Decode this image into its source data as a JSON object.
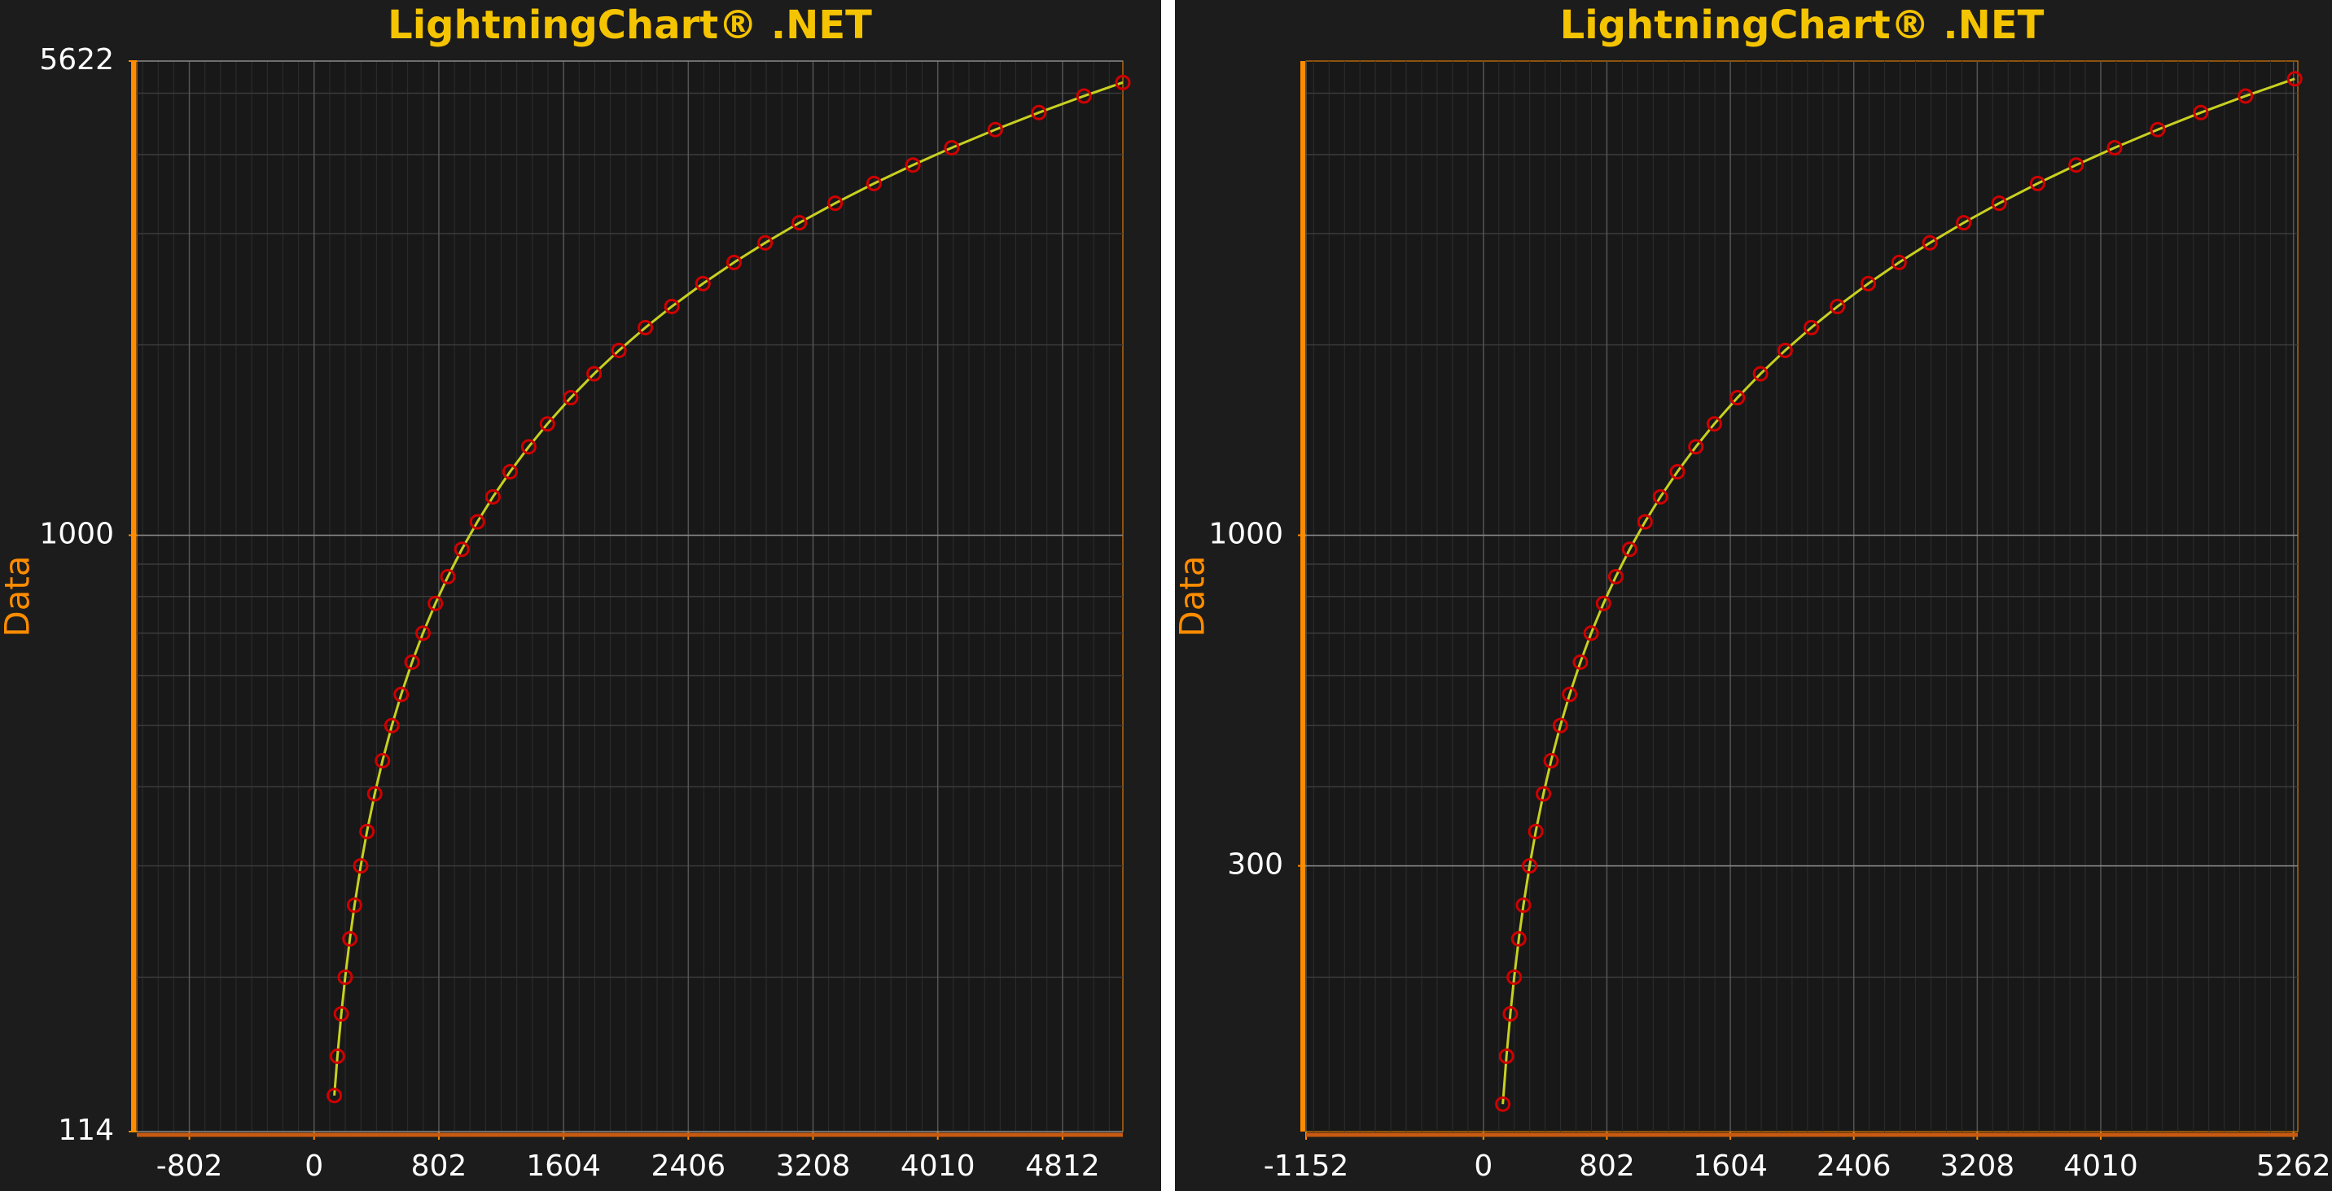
{
  "chart_data": [
    {
      "type": "scatter",
      "title": "LightningChart® .NET",
      "y_label": "Data",
      "log_y": true,
      "grid": true,
      "color": "#d00000",
      "line_color": "#c8d020",
      "axis_color": "#ff8c00",
      "title_color": "#f5c400",
      "x": [
        130,
        150,
        175,
        200,
        230,
        260,
        300,
        340,
        390,
        440,
        500,
        560,
        630,
        700,
        780,
        860,
        950,
        1050,
        1150,
        1260,
        1380,
        1500,
        1650,
        1800,
        1960,
        2130,
        2300,
        2500,
        2700,
        2900,
        3120,
        3350,
        3600,
        3850,
        4100,
        4380,
        4660,
        4950,
        5200
      ],
      "values": [
        130,
        150,
        175,
        200,
        230,
        260,
        300,
        340,
        390,
        440,
        500,
        560,
        630,
        700,
        780,
        860,
        950,
        1050,
        1150,
        1260,
        1380,
        1500,
        1650,
        1800,
        1960,
        2130,
        2300,
        2500,
        2700,
        2900,
        3120,
        3350,
        3600,
        3850,
        4100,
        4380,
        4660,
        4950,
        5200
      ],
      "xlim": [
        -1140,
        5200
      ],
      "xticks": [
        -802,
        0,
        802,
        1604,
        2406,
        3208,
        4010,
        4812
      ],
      "ylim": [
        114,
        5622
      ],
      "yticks": [
        114,
        1000,
        5622
      ]
    },
    {
      "type": "scatter",
      "title": "LightningChart® .NET",
      "y_label": "Data",
      "log_y": true,
      "grid": true,
      "color": "#d00000",
      "line_color": "#c8d020",
      "axis_color": "#ff8c00",
      "title_color": "#f5c400",
      "x": [
        126,
        150,
        175,
        200,
        230,
        260,
        300,
        340,
        390,
        440,
        500,
        560,
        630,
        700,
        780,
        860,
        950,
        1050,
        1150,
        1260,
        1380,
        1500,
        1650,
        1800,
        1960,
        2130,
        2300,
        2500,
        2700,
        2900,
        3120,
        3350,
        3600,
        3850,
        4100,
        4380,
        4660,
        4950,
        5270
      ],
      "values": [
        126,
        150,
        175,
        200,
        230,
        260,
        300,
        340,
        390,
        440,
        500,
        560,
        630,
        700,
        780,
        860,
        950,
        1050,
        1150,
        1260,
        1380,
        1500,
        1650,
        1800,
        1960,
        2130,
        2300,
        2500,
        2700,
        2900,
        3120,
        3350,
        3600,
        3850,
        4100,
        4380,
        4660,
        4950,
        5270
      ],
      "xlim": [
        -1152,
        5290
      ],
      "xticks": [
        -1152,
        0,
        802,
        1604,
        2406,
        3208,
        4010,
        5262
      ],
      "ylim": [
        114,
        5622
      ],
      "yticks": [
        300,
        1000
      ]
    }
  ]
}
